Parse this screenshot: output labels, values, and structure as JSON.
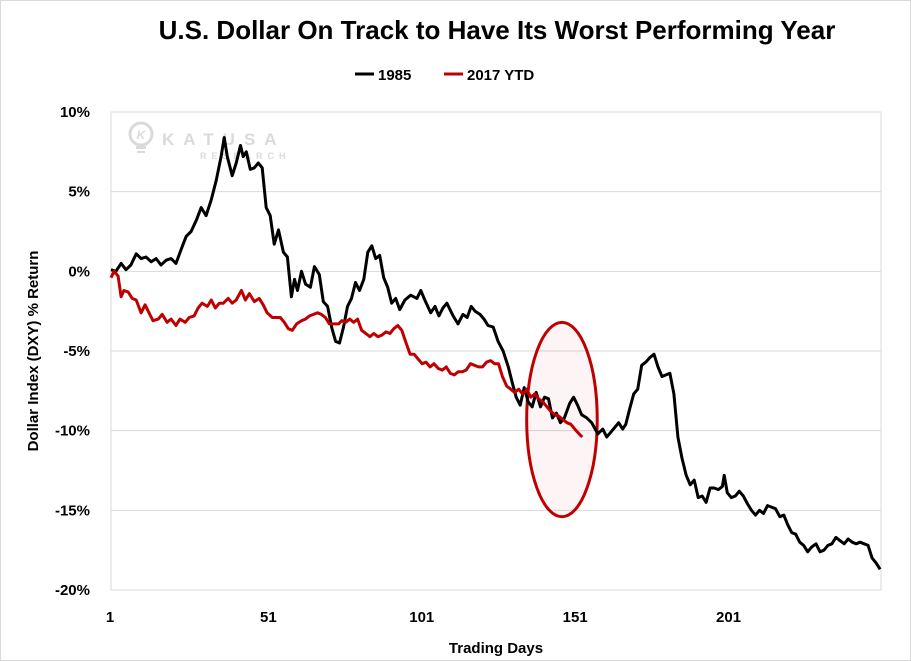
{
  "chart_data": {
    "type": "line",
    "title": "U.S. Dollar On Track to Have Its Worst Performing Year",
    "xlabel": "Trading Days",
    "ylabel": "Dollar Index (DXY) % Return",
    "xlim": [
      1,
      252
    ],
    "ylim": [
      -20,
      10
    ],
    "x_ticks": [
      1,
      51,
      101,
      151,
      201
    ],
    "x_tick_labels": [
      "1",
      "51",
      "101",
      "151",
      "201"
    ],
    "y_ticks": [
      10,
      5,
      0,
      -5,
      -10,
      -15,
      -20
    ],
    "y_tick_labels": [
      "10%",
      "5%",
      "0%",
      "-5%",
      "-10%",
      "-15%",
      "-20%"
    ],
    "grid": "horizontal",
    "legend": {
      "position": "top-center",
      "entries": [
        "1985",
        "2017 YTD"
      ]
    },
    "watermark": {
      "main": "KATUSA",
      "sub": "RESEARCH"
    },
    "annotation": {
      "type": "ellipse",
      "label": "highlight",
      "center_day": 148,
      "center_value": -9.3,
      "day_radius": 11.5,
      "value_radius": 6.1
    },
    "series": [
      {
        "name": "1985",
        "color": "#000000",
        "points": [
          [
            1,
            0.1
          ],
          [
            2.6,
            0.0
          ],
          [
            4.3,
            0.5
          ],
          [
            5.9,
            0.1
          ],
          [
            7.5,
            0.4
          ],
          [
            9.2,
            1.1
          ],
          [
            10.8,
            0.8
          ],
          [
            12.4,
            0.9
          ],
          [
            14.1,
            0.6
          ],
          [
            15.7,
            0.8
          ],
          [
            17.3,
            0.4
          ],
          [
            19,
            0.7
          ],
          [
            20.6,
            0.8
          ],
          [
            22.2,
            0.5
          ],
          [
            23.9,
            1.4
          ],
          [
            25.5,
            2.2
          ],
          [
            27.1,
            2.5
          ],
          [
            28.8,
            3.2
          ],
          [
            30.4,
            4.0
          ],
          [
            32,
            3.5
          ],
          [
            33.7,
            4.5
          ],
          [
            35.3,
            5.7
          ],
          [
            36.9,
            7.2
          ],
          [
            37.9,
            8.4
          ],
          [
            38.9,
            7.2
          ],
          [
            40.5,
            6.0
          ],
          [
            41.8,
            6.8
          ],
          [
            43.2,
            7.9
          ],
          [
            44.1,
            7.2
          ],
          [
            45.1,
            7.5
          ],
          [
            46.4,
            6.4
          ],
          [
            47.7,
            6.5
          ],
          [
            49,
            6.8
          ],
          [
            50.3,
            6.5
          ],
          [
            51.6,
            4.0
          ],
          [
            52.9,
            3.5
          ],
          [
            54.2,
            1.7
          ],
          [
            55.6,
            2.6
          ],
          [
            57.2,
            1.2
          ],
          [
            58.5,
            0.9
          ],
          [
            59.8,
            -1.6
          ],
          [
            60.8,
            -0.5
          ],
          [
            61.8,
            -1.2
          ],
          [
            63.1,
            0.0
          ],
          [
            64.4,
            -0.8
          ],
          [
            66,
            -1.0
          ],
          [
            67.3,
            0.3
          ],
          [
            68.9,
            -0.2
          ],
          [
            70.2,
            -1.9
          ],
          [
            71.6,
            -2.2
          ],
          [
            72.9,
            -3.5
          ],
          [
            74.2,
            -4.4
          ],
          [
            75.5,
            -4.5
          ],
          [
            76.8,
            -3.5
          ],
          [
            78.1,
            -2.2
          ],
          [
            79.4,
            -1.7
          ],
          [
            80.7,
            -0.7
          ],
          [
            82,
            -1.2
          ],
          [
            83.4,
            -0.5
          ],
          [
            84.7,
            1.2
          ],
          [
            86,
            1.6
          ],
          [
            87.3,
            0.8
          ],
          [
            88.6,
            1.0
          ],
          [
            89.9,
            -0.4
          ],
          [
            91.2,
            -1.0
          ],
          [
            92.5,
            -2.0
          ],
          [
            93.8,
            -1.7
          ],
          [
            95.1,
            -2.4
          ],
          [
            96.8,
            -1.8
          ],
          [
            98.7,
            -1.5
          ],
          [
            100.7,
            -1.7
          ],
          [
            102,
            -1.2
          ],
          [
            103.3,
            -1.8
          ],
          [
            105.2,
            -2.6
          ],
          [
            106.6,
            -2.2
          ],
          [
            107.9,
            -2.8
          ],
          [
            109.2,
            -2.3
          ],
          [
            110.5,
            -2.0
          ],
          [
            112.5,
            -2.8
          ],
          [
            114.1,
            -3.3
          ],
          [
            115.7,
            -2.7
          ],
          [
            117.1,
            -2.9
          ],
          [
            118.4,
            -2.2
          ],
          [
            119.7,
            -2.5
          ],
          [
            121.3,
            -2.7
          ],
          [
            122.6,
            -3.0
          ],
          [
            123.9,
            -3.4
          ],
          [
            125.6,
            -3.5
          ],
          [
            127.2,
            -4.4
          ],
          [
            128.8,
            -5.0
          ],
          [
            130.5,
            -6.0
          ],
          [
            131.8,
            -7.0
          ],
          [
            133.1,
            -7.9
          ],
          [
            134.4,
            -8.4
          ],
          [
            135.7,
            -7.3
          ],
          [
            137,
            -8.2
          ],
          [
            138.3,
            -8.5
          ],
          [
            139.6,
            -7.6
          ],
          [
            141,
            -8.5
          ],
          [
            142.3,
            -7.9
          ],
          [
            143.6,
            -8.0
          ],
          [
            144.9,
            -9.2
          ],
          [
            146.2,
            -8.9
          ],
          [
            147.5,
            -9.5
          ],
          [
            148.8,
            -9.2
          ],
          [
            150.5,
            -8.3
          ],
          [
            151.8,
            -7.9
          ],
          [
            153.1,
            -8.4
          ],
          [
            154.4,
            -9.0
          ],
          [
            156.1,
            -9.2
          ],
          [
            157.7,
            -9.5
          ],
          [
            159.7,
            -10.2
          ],
          [
            161.3,
            -9.9
          ],
          [
            162.6,
            -10.4
          ],
          [
            163.9,
            -10.1
          ],
          [
            165.2,
            -9.8
          ],
          [
            166.5,
            -9.5
          ],
          [
            167.8,
            -9.9
          ],
          [
            168.8,
            -9.6
          ],
          [
            170.1,
            -8.6
          ],
          [
            171.4,
            -7.7
          ],
          [
            172.7,
            -7.4
          ],
          [
            174,
            -5.9
          ],
          [
            175.3,
            -5.7
          ],
          [
            176.7,
            -5.4
          ],
          [
            178,
            -5.2
          ],
          [
            179.3,
            -6.0
          ],
          [
            180.6,
            -6.6
          ],
          [
            181.9,
            -6.5
          ],
          [
            183.2,
            -6.4
          ],
          [
            184.5,
            -7.7
          ],
          [
            185.8,
            -10.4
          ],
          [
            187.1,
            -11.7
          ],
          [
            188.5,
            -12.8
          ],
          [
            189.8,
            -13.4
          ],
          [
            191.1,
            -13.1
          ],
          [
            192.4,
            -14.2
          ],
          [
            193.7,
            -14.1
          ],
          [
            195,
            -14.5
          ],
          [
            196.3,
            -13.6
          ],
          [
            197.6,
            -13.6
          ],
          [
            199,
            -13.7
          ],
          [
            200.3,
            -13.5
          ],
          [
            200.9,
            -12.8
          ],
          [
            201.9,
            -13.9
          ],
          [
            203.2,
            -14.2
          ],
          [
            204.5,
            -14.1
          ],
          [
            205.8,
            -13.8
          ],
          [
            207.1,
            -14.1
          ],
          [
            208.5,
            -14.6
          ],
          [
            209.8,
            -15.0
          ],
          [
            211.1,
            -15.3
          ],
          [
            212.4,
            -15.0
          ],
          [
            213.7,
            -15.2
          ],
          [
            215,
            -14.7
          ],
          [
            216.3,
            -14.8
          ],
          [
            217.6,
            -14.9
          ],
          [
            219,
            -15.4
          ],
          [
            220.3,
            -15.3
          ],
          [
            221.6,
            -15.9
          ],
          [
            222.9,
            -16.4
          ],
          [
            224.2,
            -16.5
          ],
          [
            225.5,
            -17.0
          ],
          [
            226.8,
            -17.2
          ],
          [
            228.1,
            -17.6
          ],
          [
            229.4,
            -17.3
          ],
          [
            230.8,
            -17.1
          ],
          [
            232.1,
            -17.6
          ],
          [
            233.4,
            -17.5
          ],
          [
            234.7,
            -17.2
          ],
          [
            236,
            -17.1
          ],
          [
            237.3,
            -16.7
          ],
          [
            238.6,
            -16.9
          ],
          [
            240,
            -17.1
          ],
          [
            241.3,
            -16.8
          ],
          [
            242.6,
            -17.0
          ],
          [
            243.9,
            -17.1
          ],
          [
            245.2,
            -17.0
          ],
          [
            246.5,
            -17.1
          ],
          [
            247.8,
            -17.2
          ],
          [
            249.1,
            -18.0
          ],
          [
            250.4,
            -18.3
          ],
          [
            251.7,
            -18.7
          ]
        ]
      },
      {
        "name": "2017 YTD",
        "color": "#c00000",
        "points": [
          [
            1,
            -0.4
          ],
          [
            2,
            0.0
          ],
          [
            3.3,
            -0.3
          ],
          [
            4.3,
            -1.6
          ],
          [
            5.2,
            -1.2
          ],
          [
            6.6,
            -1.3
          ],
          [
            7.9,
            -1.7
          ],
          [
            9.2,
            -1.8
          ],
          [
            10.8,
            -2.6
          ],
          [
            12.1,
            -2.1
          ],
          [
            13.4,
            -2.6
          ],
          [
            14.7,
            -3.1
          ],
          [
            16.4,
            -3.0
          ],
          [
            17.7,
            -2.7
          ],
          [
            19.3,
            -3.2
          ],
          [
            20.6,
            -3.0
          ],
          [
            22.2,
            -3.4
          ],
          [
            23.5,
            -3.0
          ],
          [
            25.2,
            -3.2
          ],
          [
            26.5,
            -2.9
          ],
          [
            28.1,
            -2.8
          ],
          [
            29.4,
            -2.3
          ],
          [
            30.7,
            -2.0
          ],
          [
            32.4,
            -2.2
          ],
          [
            33.7,
            -1.8
          ],
          [
            35,
            -2.3
          ],
          [
            36.3,
            -2.0
          ],
          [
            37.6,
            -2.0
          ],
          [
            39.2,
            -1.7
          ],
          [
            40.5,
            -2.0
          ],
          [
            41.8,
            -1.8
          ],
          [
            43.5,
            -1.2
          ],
          [
            44.8,
            -1.8
          ],
          [
            46.1,
            -1.4
          ],
          [
            47.7,
            -1.9
          ],
          [
            49.3,
            -1.7
          ],
          [
            50.6,
            -2.1
          ],
          [
            51.9,
            -2.6
          ],
          [
            53.6,
            -2.9
          ],
          [
            54.9,
            -2.9
          ],
          [
            56.2,
            -2.9
          ],
          [
            57.5,
            -3.2
          ],
          [
            58.8,
            -3.6
          ],
          [
            60.1,
            -3.7
          ],
          [
            61.5,
            -3.3
          ],
          [
            63.1,
            -3.1
          ],
          [
            64.4,
            -3.0
          ],
          [
            65.7,
            -2.8
          ],
          [
            67,
            -2.7
          ],
          [
            68.3,
            -2.6
          ],
          [
            69.6,
            -2.7
          ],
          [
            70.9,
            -2.9
          ],
          [
            72.2,
            -3.3
          ],
          [
            73.5,
            -3.3
          ],
          [
            75.2,
            -3.3
          ],
          [
            76.2,
            -3.1
          ],
          [
            77.5,
            -3.2
          ],
          [
            78.8,
            -3.0
          ],
          [
            80.1,
            -3.2
          ],
          [
            81.4,
            -3.0
          ],
          [
            82.7,
            -3.7
          ],
          [
            84.1,
            -3.9
          ],
          [
            85.4,
            -4.1
          ],
          [
            86.7,
            -3.9
          ],
          [
            88,
            -4.1
          ],
          [
            89.3,
            -4.0
          ],
          [
            90.6,
            -3.8
          ],
          [
            91.9,
            -3.9
          ],
          [
            93.2,
            -3.6
          ],
          [
            94.5,
            -3.4
          ],
          [
            95.8,
            -3.7
          ],
          [
            97.2,
            -4.5
          ],
          [
            98.5,
            -5.2
          ],
          [
            99.8,
            -5.2
          ],
          [
            101.1,
            -5.5
          ],
          [
            102.4,
            -5.8
          ],
          [
            103.7,
            -5.7
          ],
          [
            105,
            -6.0
          ],
          [
            106.3,
            -5.8
          ],
          [
            107.7,
            -6.1
          ],
          [
            109,
            -6.2
          ],
          [
            110.3,
            -6.0
          ],
          [
            111.6,
            -6.4
          ],
          [
            112.9,
            -6.5
          ],
          [
            114.2,
            -6.3
          ],
          [
            115.5,
            -6.3
          ],
          [
            116.8,
            -6.2
          ],
          [
            118.2,
            -5.8
          ],
          [
            119.5,
            -5.9
          ],
          [
            120.8,
            -6.0
          ],
          [
            122.1,
            -6.0
          ],
          [
            123.4,
            -5.7
          ],
          [
            124.7,
            -5.6
          ],
          [
            126,
            -5.8
          ],
          [
            127.3,
            -5.8
          ],
          [
            128.6,
            -6.6
          ],
          [
            130,
            -7.2
          ],
          [
            131.3,
            -7.4
          ],
          [
            132.6,
            -7.6
          ],
          [
            133.9,
            -7.4
          ],
          [
            135.2,
            -7.7
          ],
          [
            136.5,
            -7.4
          ],
          [
            137.8,
            -7.9
          ],
          [
            139.1,
            -7.7
          ],
          [
            140.4,
            -8.0
          ],
          [
            141.8,
            -8.2
          ],
          [
            143.1,
            -8.5
          ],
          [
            144.4,
            -8.8
          ],
          [
            145.7,
            -9.0
          ],
          [
            147,
            -9.1
          ],
          [
            148.3,
            -9.3
          ],
          [
            149.6,
            -9.5
          ],
          [
            150.9,
            -9.6
          ],
          [
            152.2,
            -9.9
          ],
          [
            153.6,
            -10.2
          ],
          [
            154.6,
            -10.4
          ]
        ]
      }
    ]
  }
}
